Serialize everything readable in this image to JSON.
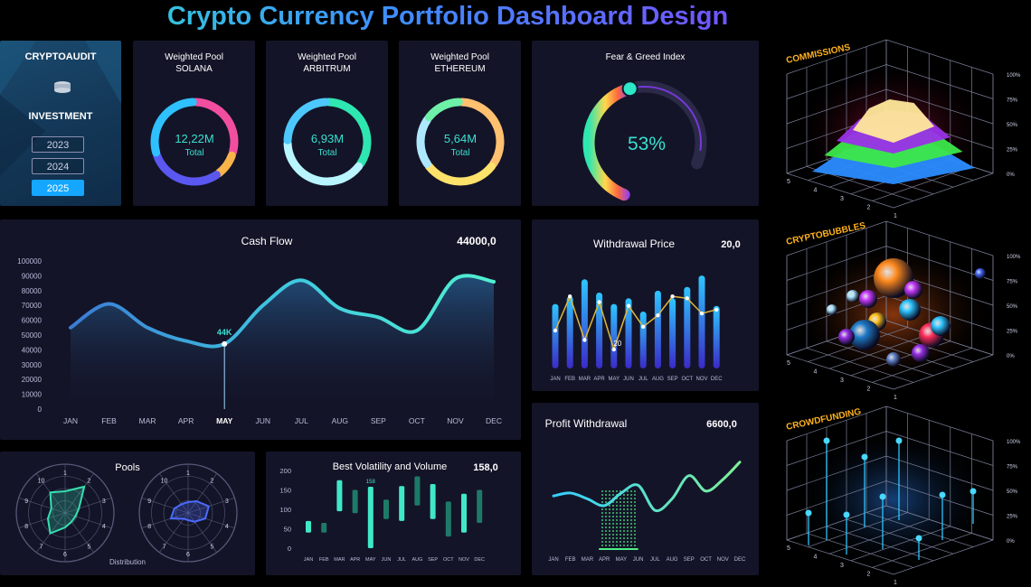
{
  "title": "Crypto Currency Portfolio Dashboard Design",
  "sidebar": {
    "brand": "CRYPTOAUDIT",
    "section": "INVESTMENT",
    "years": [
      "2023",
      "2024",
      "2025"
    ],
    "active_year": "2025",
    "icon": "coins-icon"
  },
  "pools": [
    {
      "title": "Weighted Pool",
      "name": "SOLANA",
      "value": "12,22M",
      "label": "Total"
    },
    {
      "title": "Weighted Pool",
      "name": "ARBITRUM",
      "value": "6,93M",
      "label": "Total"
    },
    {
      "title": "Weighted Pool",
      "name": "ETHEREUM",
      "value": "5,64M",
      "label": "Total"
    }
  ],
  "fear_greed": {
    "title": "Fear & Greed Index",
    "value": "53%",
    "fraction": 0.53
  },
  "chart_data": [
    {
      "id": "cash_flow",
      "type": "area",
      "title": "Cash Flow",
      "headline": "44000,0",
      "categories": [
        "JAN",
        "FEB",
        "MAR",
        "APR",
        "MAY",
        "JUN",
        "JUL",
        "AUG",
        "SEP",
        "OCT",
        "NOV",
        "DEC"
      ],
      "highlight_category": "MAY",
      "highlight_label": "44K",
      "values": [
        55000,
        71000,
        55000,
        46000,
        44000,
        70000,
        87000,
        68000,
        62000,
        53000,
        88000,
        86000
      ],
      "yticks": [
        "0",
        "10000",
        "20000",
        "30000",
        "40000",
        "50000",
        "60000",
        "70000",
        "80000",
        "90000",
        "100000"
      ],
      "ylim": [
        0,
        100000
      ]
    },
    {
      "id": "withdrawal_price",
      "type": "bar",
      "title": "Withdrawal Price",
      "headline": "20,0",
      "categories": [
        "JAN",
        "FEB",
        "MAR",
        "APR",
        "MAY",
        "JUN",
        "JUL",
        "AUG",
        "SEP",
        "OCT",
        "NOV",
        "DEC"
      ],
      "bars": [
        68,
        76,
        94,
        80,
        68,
        74,
        60,
        82,
        74,
        86,
        98,
        66
      ],
      "line": [
        40,
        76,
        30,
        70,
        20,
        66,
        44,
        56,
        76,
        74,
        58,
        62
      ],
      "point_label": "20",
      "ylim": [
        0,
        100
      ]
    },
    {
      "id": "pools_radar",
      "type": "radar",
      "title": "Pools",
      "subtitle": "Distribution",
      "axes": [
        "1",
        "2",
        "3",
        "4",
        "5",
        "6",
        "7",
        "8",
        "9",
        "10"
      ],
      "series": [
        {
          "values": [
            6,
            9,
            4,
            3,
            3,
            4,
            7,
            5,
            4,
            7
          ],
          "color": "#35e0b0"
        },
        {
          "values": [
            3,
            4,
            6,
            5,
            3,
            2,
            2,
            5,
            4,
            3
          ],
          "color": "#4a6bff"
        }
      ],
      "rmax": 10
    },
    {
      "id": "volatility",
      "type": "bar",
      "title": "Best Volatility and Volume",
      "headline": "158,0",
      "categories": [
        "JAN",
        "FEB",
        "MAR",
        "APR",
        "MAY",
        "JUN",
        "JUL",
        "AUG",
        "SEP",
        "OCT",
        "NOV",
        "DEC"
      ],
      "ranges": [
        [
          70,
          40
        ],
        [
          65,
          40
        ],
        [
          175,
          95
        ],
        [
          150,
          90
        ],
        [
          158,
          0
        ],
        [
          125,
          75
        ],
        [
          160,
          70
        ],
        [
          185,
          110
        ],
        [
          165,
          75
        ],
        [
          120,
          30
        ],
        [
          140,
          40
        ],
        [
          150,
          65
        ]
      ],
      "highlight_label": "158",
      "yticks": [
        "0",
        "50",
        "100",
        "150",
        "200"
      ],
      "ylim": [
        0,
        200
      ]
    },
    {
      "id": "profit_withdrawal",
      "type": "line",
      "title": "Profit Withdrawal",
      "headline": "6600,0",
      "categories": [
        "JAN",
        "FEB",
        "MAR",
        "APR",
        "MAY",
        "JUN",
        "JUL",
        "AUG",
        "SEP",
        "OCT",
        "NOV",
        "DEC"
      ],
      "values": [
        55,
        58,
        52,
        45,
        58,
        66,
        40,
        52,
        76,
        60,
        72,
        90
      ],
      "ylim": [
        0,
        100
      ]
    }
  ],
  "cubes": [
    {
      "label": "COMMISSIONS",
      "ticks": [
        "100%",
        "75%",
        "50%",
        "25%",
        "0%"
      ],
      "depth": [
        "5",
        "4",
        "3",
        "2",
        "1"
      ],
      "kind": "surface"
    },
    {
      "label": "CRYPTOBUBBLES",
      "ticks": [
        "100%",
        "75%",
        "50%",
        "25%",
        "0%"
      ],
      "depth": [
        "5",
        "4",
        "3",
        "2",
        "1"
      ],
      "kind": "bubbles"
    },
    {
      "label": "CROWDFUNDING",
      "ticks": [
        "100%",
        "75%",
        "50%",
        "25%",
        "0%"
      ],
      "depth": [
        "5",
        "4",
        "3",
        "2",
        "1"
      ],
      "kind": "stems"
    }
  ]
}
